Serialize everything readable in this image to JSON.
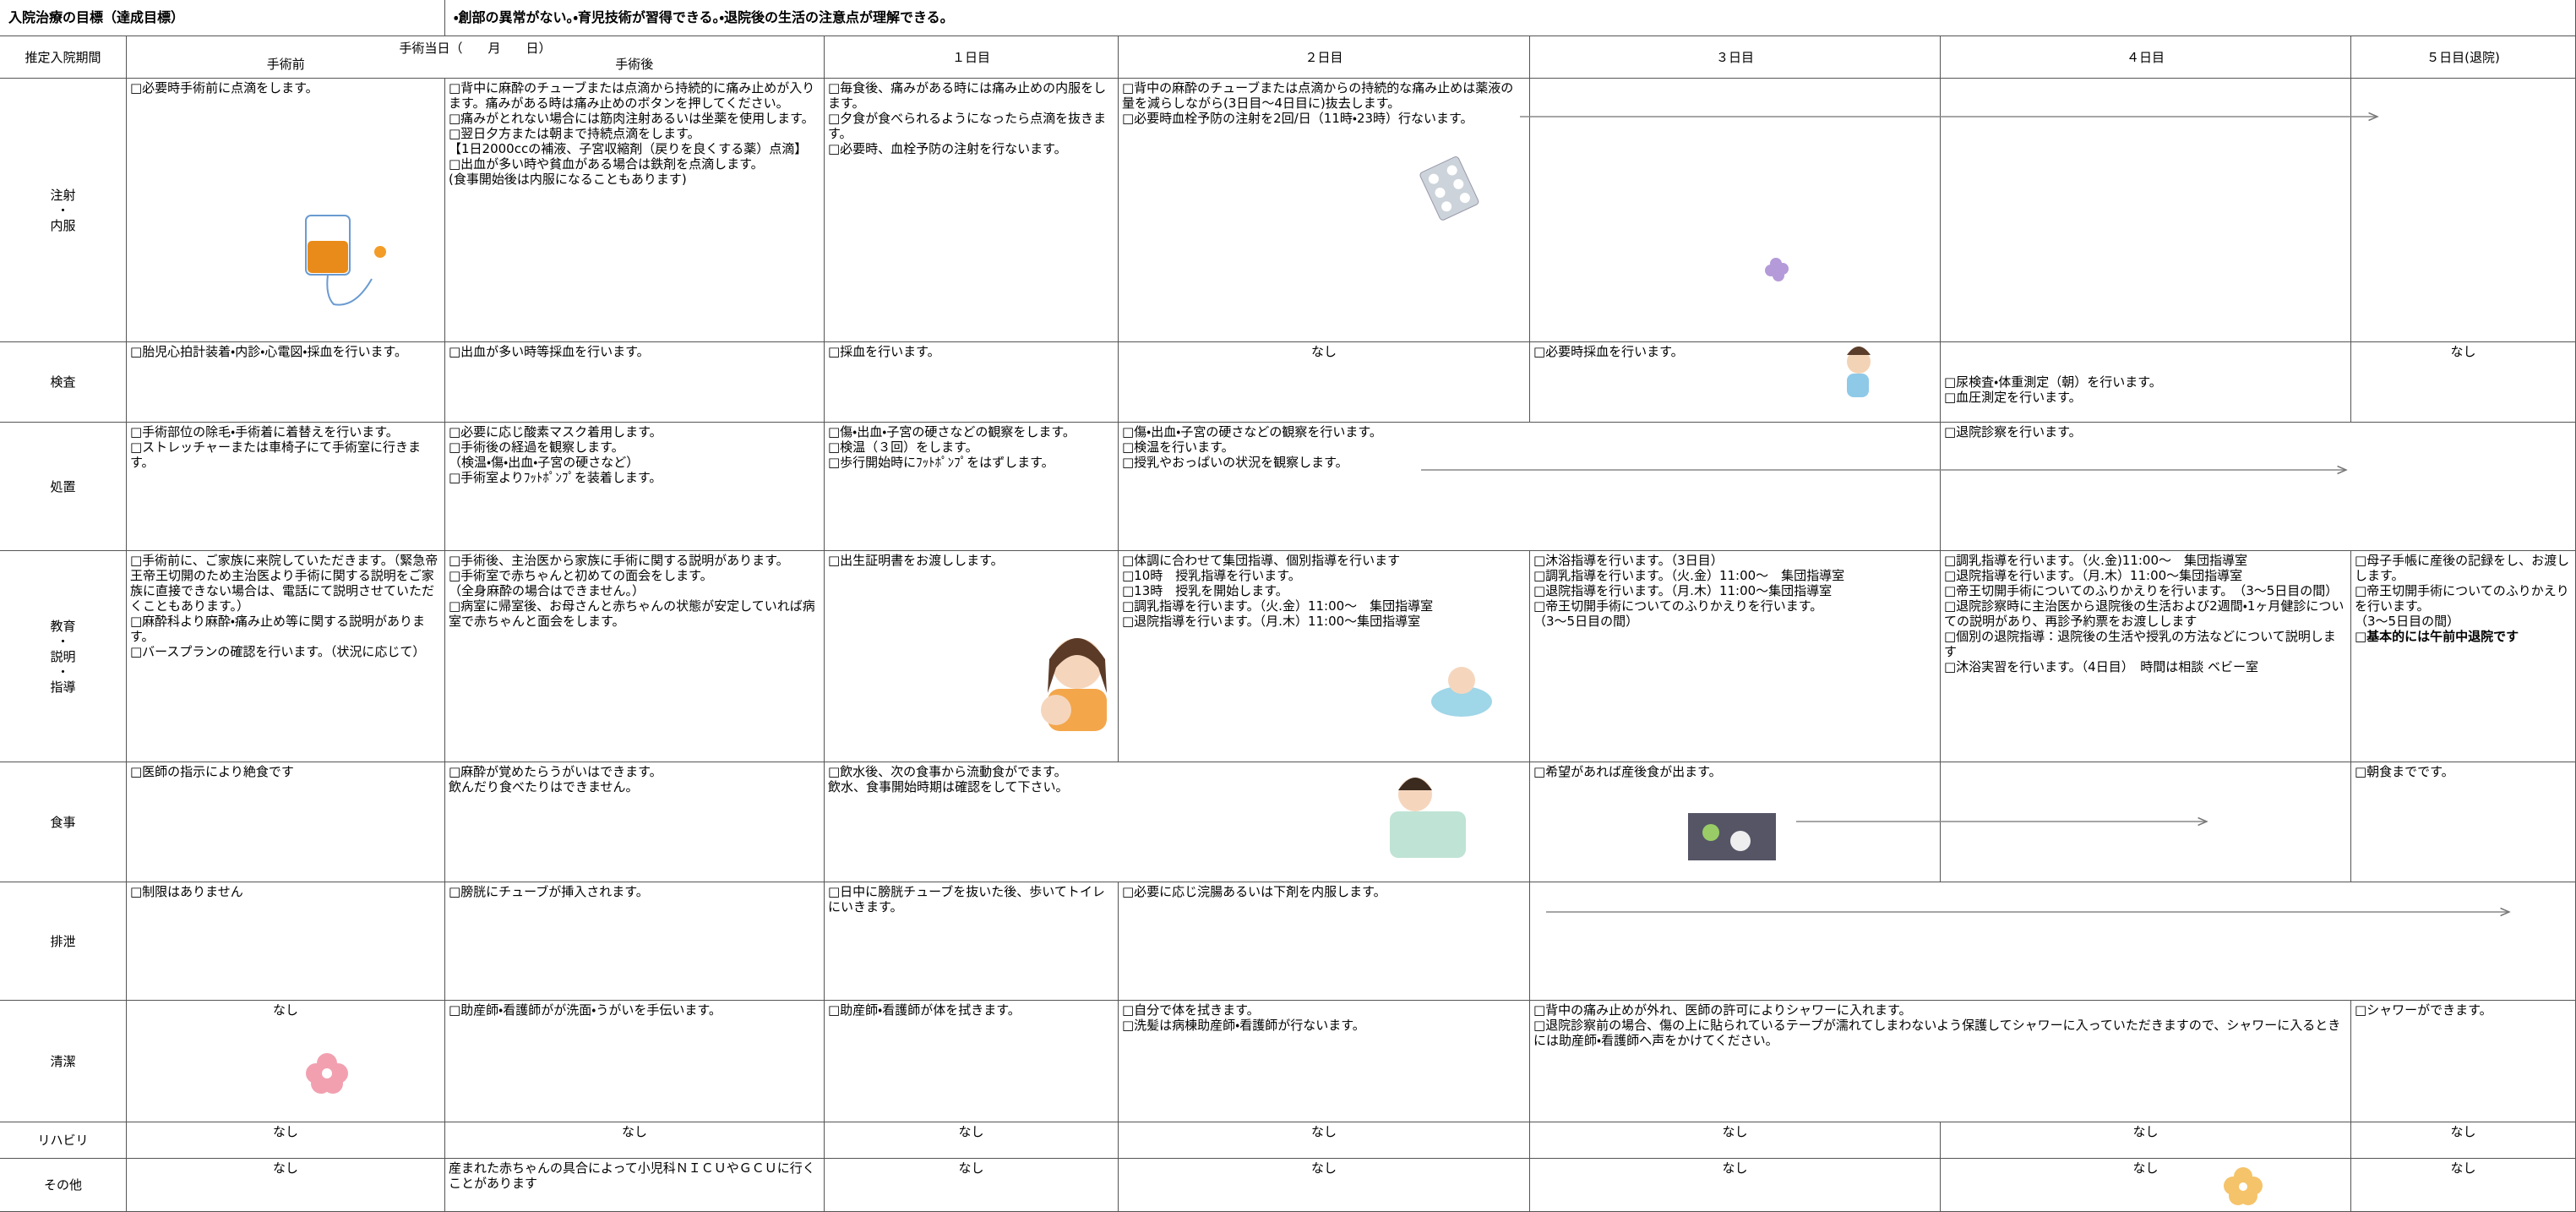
{
  "header": {
    "goal_label": "入院治療の目標（達成目標）",
    "goal": "・創部の異常がない。・育児技術が習得できる。・退院後の生活の注意点が理解できる。"
  },
  "columns": {
    "period": "推定入院期間",
    "surgery_day": "手術当日（　　月　　日）",
    "pre": "手術前",
    "post": "手術後",
    "day1": "１日目",
    "day2": "２日目",
    "day3": "３日目",
    "day4": "４日目",
    "day5": "５日目(退院)"
  },
  "rows": [
    {
      "label": [
        "注射",
        "・",
        "内服"
      ],
      "pre": [
        "□必要時手術前に点滴をします。"
      ],
      "post": [
        "□背中に麻酔のチューブまたは点滴から持続的に痛み止めが入ります。痛みがある時は痛み止めのボタンを押してください。",
        "□痛みがとれない場合には筋肉注射あるいは坐薬を使用します。",
        "□翌日夕方または朝まで持続点滴をします。",
        "【1日2000ccの補液、子宮収縮剤（戻りを良くする薬）点滴】",
        "□出血が多い時や貧血がある場合は鉄剤を点滴します。",
        "(食事開始後は内服になることもあります)"
      ],
      "day1": [
        "□毎食後、痛みがある時には痛み止めの内服をします。",
        "□夕食が食べられるようになったら点滴を抜きます。",
        "□必要時、血栓予防の注射を行ないます。"
      ],
      "day2": [
        "□背中の麻酔のチューブまたは点滴からの持続的な痛み止めは薬液の量を減らしながら(3日目～4日目に)抜去します。",
        "□必要時血栓予防の注射を2回/日（11時・23時）行ないます。"
      ]
    },
    {
      "label": [
        "検査"
      ],
      "pre": [
        "□胎児心拍計装着・内診・心電図・採血を行います。"
      ],
      "post": [
        "□出血が多い時等採血を行います。"
      ],
      "day1": [
        "□採血を行います。"
      ],
      "day2": [
        "なし"
      ],
      "day3": [
        "□必要時採血を行います。"
      ],
      "day4": [
        "□尿検査・体重測定（朝）を行います。",
        "□血圧測定を行います。"
      ],
      "day5": [
        "なし"
      ]
    },
    {
      "label": [
        "処置"
      ],
      "pre": [
        "□手術部位の除毛・手術着に着替えを行います。",
        "□ストレッチャーまたは車椅子にて手術室に行きます。"
      ],
      "post": [
        "□必要に応じ酸素マスク着用します。",
        "□手術後の経過を観察します。",
        "（検温・傷・出血・子宮の硬さなど）",
        "□手術室よりﾌｯﾄﾎﾟﾝﾌﾟを装着します。"
      ],
      "day1": [
        "□傷・出血・子宮の硬さなどの観察をします。",
        "□検温（３回）をします。",
        "□歩行開始時にﾌｯﾄﾎﾟﾝﾌﾟをはずします。"
      ],
      "day2": [
        "□傷・出血・子宮の硬さなどの観察を行います。",
        "□検温を行います。",
        "□授乳やおっぱいの状況を観察します。"
      ],
      "day4": [
        "□退院診察を行います。"
      ]
    },
    {
      "label": [
        "教育",
        "・",
        "説明",
        "・",
        "指導"
      ],
      "pre": [
        "□手術前に、ご家族に来院していただきます。（緊急帝王帝王切開のため主治医より手術に関する説明をご家族に直接できない場合は、電話にて説明させていただくこともあります。）",
        "□麻酔科より麻酔・痛み止め等に関する説明があります。",
        "□バースプランの確認を行います。（状況に応じて）"
      ],
      "post": [
        "□手術後、主治医から家族に手術に関する説明があります。",
        "□手術室で赤ちゃんと初めての面会をします。",
        "（全身麻酔の場合はできません。）",
        "□病室に帰室後、お母さんと赤ちゃんの状態が安定していれば病室で赤ちゃんと面会をします。"
      ],
      "day1": [
        "□出生証明書をお渡しします。"
      ],
      "day2": [
        "□体調に合わせて集団指導、個別指導を行います",
        "□10時　授乳指導を行います。",
        "□13時　授乳を開始します。",
        "□調乳指導を行います。（火.金）11:00～　集団指導室",
        "□退院指導を行います。（月.木）11:00～集団指導室"
      ],
      "day3": [
        "□沐浴指導を行います。（3日目）",
        "□調乳指導を行います。（火.金）11:00～　集団指導室",
        "□退院指導を行います。（月.木）11:00～集団指導室",
        "□帝王切開手術についてのふりかえりを行います。",
        "（3～5日目の間）"
      ],
      "day4": [
        "□調乳指導を行います。（火.金)11:00～　集団指導室",
        "□退院指導を行います。（月.木）11:00～集団指導室",
        "□帝王切開手術についてのふりかえりを行います。　（3～5日目の間）",
        "□退院診察時に主治医から退院後の生活および2週間・1ヶ月健診についての説明があり、再診予約票をお渡しします",
        "□個別の退院指導：退院後の生活や授乳の方法などについて説明します",
        "□沐浴実習を行います。（4日目）　時間は相談 ベビー室"
      ],
      "day5": [
        "□母子手帳に産後の記録をし、お渡しします。",
        "□帝王切開手術についてのふりかえりを行います。",
        "（3～5日目の間）",
        "□基本的には午前中退院です"
      ]
    },
    {
      "label": [
        "食事"
      ],
      "pre": [
        "□医師の指示により絶食です"
      ],
      "post": [
        "□麻酔が覚めたらうがいはできます。",
        "飲んだり食べたりはできません。"
      ],
      "day1": [
        "□飲水後、次の食事から流動食がでます。",
        "飲水、食事開始時期は確認をして下さい。"
      ],
      "day3": [
        "□希望があれば産後食が出ます。"
      ],
      "day5": [
        "□朝食までです。"
      ]
    },
    {
      "label": [
        "排泄"
      ],
      "pre": [
        "□制限はありません"
      ],
      "post": [
        "□膀胱にチューブが挿入されます。"
      ],
      "day1": [
        "□日中に膀胱チューブを抜いた後、歩いてトイレにいきます。"
      ],
      "day2": [
        "□必要に応じ浣腸あるいは下剤を内服します。"
      ]
    },
    {
      "label": [
        "清潔"
      ],
      "pre": [
        "なし"
      ],
      "post": [
        "□助産師・看護師がが洗面・うがいを手伝います。"
      ],
      "day1": [
        "□助産師・看護師が体を拭きます。"
      ],
      "day2": [
        "□自分で体を拭きます。",
        "□洗髪は病棟助産師・看護師が行ないます。"
      ],
      "day3": [
        "□背中の痛み止めが外れ、医師の許可によりシャワーに入れます。",
        "□退院診察前の場合、傷の上に貼られているテープが濡れてしまわないよう保護してシャワーに入っていただきますので、シャワーに入るときには助産師・看護師へ声をかけてください。"
      ],
      "day5": [
        "□シャワーができます。"
      ]
    },
    {
      "label": [
        "リハビリ"
      ],
      "pre": [
        "なし"
      ],
      "post": [
        "なし"
      ],
      "day1": [
        "なし"
      ],
      "day2": [
        "なし"
      ],
      "day3": [
        "なし"
      ],
      "day4": [
        "なし"
      ],
      "day5": [
        "なし"
      ]
    },
    {
      "label": [
        "その他"
      ],
      "pre": [
        "なし"
      ],
      "post": [
        "産まれた赤ちゃんの具合によって小児科ＮＩＣＵやＧＣＵに行くことがあります"
      ],
      "day1": [
        "なし"
      ],
      "day2": [
        "なし"
      ],
      "day3": [
        "なし"
      ],
      "day4": [
        "なし"
      ],
      "day5": [
        "なし"
      ]
    }
  ]
}
